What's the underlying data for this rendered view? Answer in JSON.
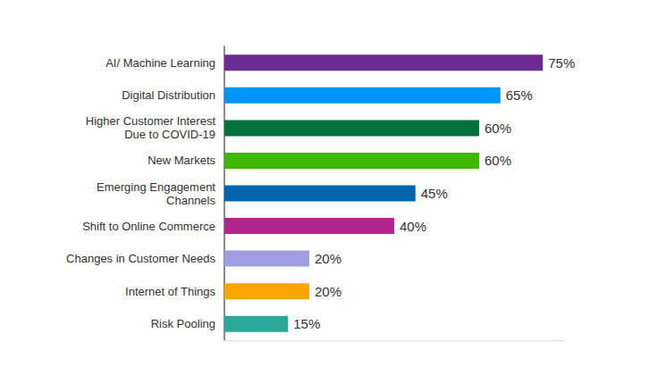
{
  "chart_data": {
    "type": "bar",
    "orientation": "horizontal",
    "categories": [
      "AI/ Machine Learning",
      "Digital Distribution",
      "Higher Customer Interest\nDue to COVID-19",
      "New Markets",
      "Emerging Engagement\nChannels",
      "Shift to Online Commerce",
      "Changes in Customer Needs",
      "Internet of Things",
      "Risk Pooling"
    ],
    "values": [
      75,
      65,
      60,
      60,
      45,
      40,
      20,
      20,
      15
    ],
    "value_labels": [
      "75%",
      "65%",
      "60%",
      "60%",
      "45%",
      "40%",
      "20%",
      "20%",
      "15%"
    ],
    "colors": [
      "#6a2c91",
      "#0096f5",
      "#00703c",
      "#3cb800",
      "#0064ac",
      "#b0268c",
      "#9f9ee0",
      "#ffa500",
      "#2ca89a"
    ],
    "xlim": [
      0,
      80
    ],
    "data_labels": true,
    "tick_labels": "y",
    "grid": false
  }
}
